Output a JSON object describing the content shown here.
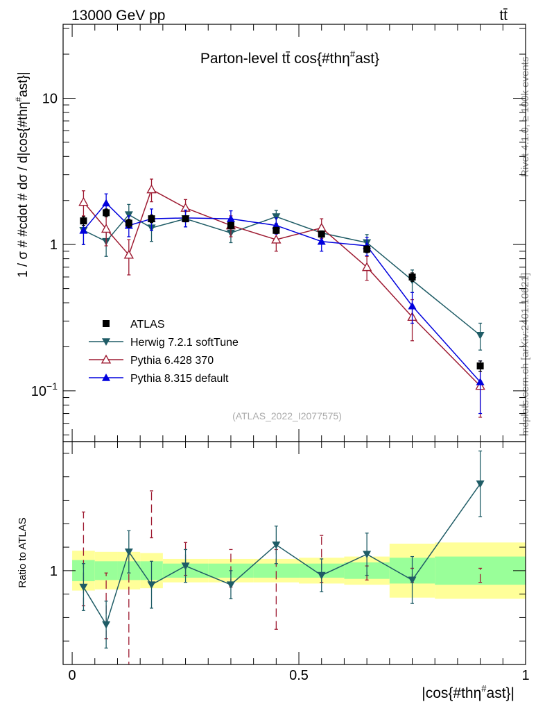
{
  "header": {
    "energy_label": "13000 GeV pp",
    "process_label": "tt̄",
    "rivet_label": "Rivet 4.1.0, ≥ 100k events",
    "source_label": "mcplots.cern.ch [arXiv:2401.10621]",
    "analysis_id": "(ATLAS_2022_I2077575)"
  },
  "chart_data": [
    {
      "type": "scatter",
      "panel": "main",
      "title": "Parton-level tt̄ cos{#thη#ast}",
      "title_parts": [
        "Parton-level t",
        "t̄",
        " cos{#thη",
        "#",
        "ast}"
      ],
      "ylabel": "1 / σ # #cdot # dσ / d|cos{#thη#ast}|",
      "ylabel_parts": [
        "1 / σ # #cdot # dσ / d|cos{#thη",
        "#",
        "ast}|"
      ],
      "yscale": "log",
      "xlim": [
        -0.02,
        1.0
      ],
      "ylim": [
        0.045,
        32
      ],
      "yticks": [
        {
          "v": 0.1,
          "base": "10",
          "exp": "−1"
        },
        {
          "v": 1,
          "label": "1"
        },
        {
          "v": 10,
          "label": "10"
        }
      ],
      "legend_position": "center-left",
      "series": [
        {
          "name": "ATLAS",
          "label": "ATLAS",
          "color": "#000000",
          "marker": "square",
          "x": [
            0.025,
            0.075,
            0.125,
            0.175,
            0.25,
            0.35,
            0.45,
            0.55,
            0.65,
            0.75,
            0.9
          ],
          "y": [
            1.45,
            1.65,
            1.4,
            1.5,
            1.5,
            1.35,
            1.25,
            1.18,
            0.93,
            0.6,
            0.148
          ],
          "yerr": [
            0.1,
            0.1,
            0.09,
            0.09,
            0.07,
            0.07,
            0.06,
            0.06,
            0.05,
            0.04,
            0.012
          ]
        },
        {
          "name": "Herwig 7.2.1 softTune",
          "label": "Herwig 7.2.1 softTune",
          "color": "#1f5c66",
          "marker": "triangle-down",
          "x": [
            0.025,
            0.075,
            0.125,
            0.175,
            0.25,
            0.35,
            0.45,
            0.55,
            0.65,
            0.75,
            0.9
          ],
          "y": [
            1.25,
            1.05,
            1.6,
            1.3,
            1.5,
            1.2,
            1.55,
            1.2,
            1.03,
            0.57,
            0.24
          ],
          "yerr": [
            0.25,
            0.22,
            0.28,
            0.25,
            0.18,
            0.17,
            0.16,
            0.15,
            0.14,
            0.1,
            0.05
          ]
        },
        {
          "name": "Pythia 6.428 370",
          "label": "Pythia 6.428 370",
          "color": "#9e1b32",
          "marker": "triangle-up-open",
          "x": [
            0.025,
            0.075,
            0.125,
            0.175,
            0.25,
            0.35,
            0.45,
            0.55,
            0.65,
            0.75,
            0.9
          ],
          "y": [
            1.95,
            1.28,
            0.85,
            2.38,
            1.78,
            1.35,
            1.08,
            1.3,
            0.7,
            0.32,
            0.108
          ],
          "yerr": [
            0.38,
            0.3,
            0.23,
            0.42,
            0.25,
            0.22,
            0.18,
            0.2,
            0.13,
            0.1,
            0.042
          ]
        },
        {
          "name": "Pythia 8.315 default",
          "label": "Pythia 8.315 default",
          "color": "#0000dd",
          "marker": "triangle-up",
          "x": [
            0.025,
            0.075,
            0.125,
            0.175,
            0.25,
            0.35,
            0.45,
            0.55,
            0.65,
            0.75,
            0.9
          ],
          "y": [
            1.25,
            1.92,
            1.35,
            1.5,
            1.52,
            1.5,
            1.35,
            1.05,
            0.98,
            0.38,
            0.115
          ],
          "yerr": [
            0.25,
            0.3,
            0.22,
            0.25,
            0.2,
            0.2,
            0.17,
            0.15,
            0.14,
            0.09,
            0.045
          ]
        }
      ]
    },
    {
      "type": "scatter",
      "panel": "ratio",
      "ylabel": "Ratio to ATLAS",
      "xlabel": "|cos{#thη#ast}|",
      "xlabel_parts": [
        "|cos{#thη",
        "#",
        "ast}|"
      ],
      "xlim": [
        -0.02,
        1.0
      ],
      "ylim": [
        0.6,
        1.55
      ],
      "xticks": [
        0,
        0.5,
        1
      ],
      "xtick_labels": [
        "0",
        "0.5",
        "1"
      ],
      "yticks": [
        1
      ],
      "ytick_labels": [
        "1"
      ],
      "bands": {
        "edges": [
          0.0,
          0.05,
          0.1,
          0.15,
          0.2,
          0.3,
          0.4,
          0.5,
          0.6,
          0.7,
          0.8,
          1.0
        ],
        "stat": [
          0.045,
          0.04,
          0.04,
          0.04,
          0.03,
          0.03,
          0.03,
          0.03,
          0.035,
          0.055,
          0.06
        ],
        "total": [
          0.085,
          0.08,
          0.08,
          0.075,
          0.05,
          0.05,
          0.05,
          0.055,
          0.06,
          0.115,
          0.12
        ],
        "stat_color": "#99ff99",
        "total_color": "#ffff99"
      },
      "series": [
        {
          "name": "Herwig 7.2.1 softTune",
          "color": "#1f5c66",
          "marker": "triangle-down",
          "x": [
            0.025,
            0.075,
            0.125,
            0.175,
            0.25,
            0.35,
            0.45,
            0.55,
            0.65,
            0.75,
            0.9
          ],
          "y": [
            0.93,
            0.77,
            1.08,
            0.94,
            1.02,
            0.94,
            1.11,
            0.98,
            1.07,
            0.96,
            1.37
          ],
          "yerr": [
            0.1,
            0.1,
            0.09,
            0.1,
            0.07,
            0.06,
            0.08,
            0.07,
            0.09,
            0.1,
            0.14
          ]
        },
        {
          "name": "Pythia 6.428 370",
          "color": "#9e1b32",
          "marker": "none",
          "dashed": true,
          "x": [
            0.025,
            0.075,
            0.125,
            0.175,
            0.25,
            0.35,
            0.45,
            0.55,
            0.65,
            0.75,
            0.9
          ],
          "y": [
            1.05,
            0.85,
            0.73,
            1.24,
            1.05,
            1.01,
            0.92,
            1.05,
            0.99,
            0.98,
            0.98
          ],
          "yerr": [
            0.2,
            0.14,
            0.26,
            0.1,
            0.07,
            0.08,
            0.17,
            0.1,
            0.03,
            0.03,
            0.03
          ]
        }
      ]
    }
  ]
}
